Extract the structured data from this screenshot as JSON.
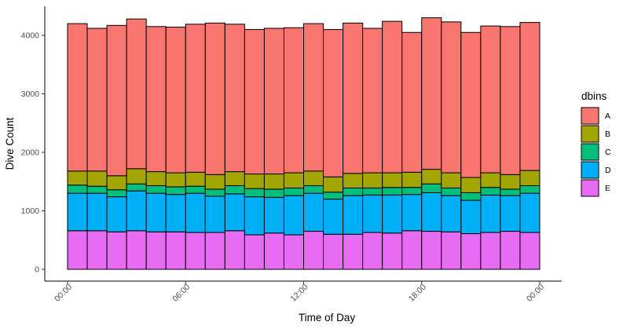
{
  "chart_data": {
    "type": "bar",
    "stacked": true,
    "xlabel": "Time of Day",
    "ylabel": "Dive Count",
    "ylim": [
      0,
      4500
    ],
    "yticks": [
      0,
      1000,
      2000,
      3000,
      4000
    ],
    "ytick_labels": [
      "0",
      "1000",
      "2000",
      "3000",
      "4000"
    ],
    "xlim": [
      0,
      24
    ],
    "xticks": [
      0,
      6,
      12,
      18,
      24
    ],
    "xtick_labels": [
      "00:00",
      "06:00",
      "12:00",
      "18:00",
      "00:00"
    ],
    "bin_width_hours": 1,
    "categories": [
      "00:00",
      "01:00",
      "02:00",
      "03:00",
      "04:00",
      "05:00",
      "06:00",
      "07:00",
      "08:00",
      "09:00",
      "10:00",
      "11:00",
      "12:00",
      "13:00",
      "14:00",
      "15:00",
      "16:00",
      "17:00",
      "18:00",
      "19:00",
      "20:00",
      "21:00",
      "22:00",
      "23:00"
    ],
    "grid": false,
    "legend": {
      "title": "dbins",
      "placement": "right"
    },
    "series": [
      {
        "name": "E",
        "color": "#E76BF3",
        "values": [
          660,
          660,
          640,
          660,
          640,
          640,
          630,
          630,
          660,
          590,
          620,
          590,
          650,
          600,
          600,
          630,
          620,
          660,
          650,
          640,
          610,
          630,
          650,
          630
        ]
      },
      {
        "name": "D",
        "color": "#00B0F6",
        "values": [
          640,
          640,
          600,
          680,
          660,
          640,
          670,
          620,
          630,
          650,
          610,
          670,
          650,
          600,
          660,
          640,
          650,
          620,
          660,
          620,
          570,
          640,
          610,
          670
        ]
      },
      {
        "name": "C",
        "color": "#00BF7D",
        "values": [
          140,
          120,
          120,
          120,
          130,
          130,
          120,
          120,
          140,
          140,
          140,
          130,
          130,
          120,
          130,
          120,
          130,
          120,
          150,
          130,
          130,
          130,
          110,
          130
        ]
      },
      {
        "name": "B",
        "color": "#A3A500",
        "values": [
          240,
          260,
          240,
          260,
          240,
          240,
          240,
          250,
          240,
          250,
          260,
          260,
          250,
          260,
          250,
          260,
          250,
          260,
          250,
          260,
          260,
          250,
          250,
          260
        ]
      },
      {
        "name": "A",
        "color": "#F8766D",
        "values": [
          2520,
          2440,
          2570,
          2560,
          2480,
          2490,
          2530,
          2590,
          2520,
          2470,
          2490,
          2480,
          2520,
          2520,
          2570,
          2470,
          2590,
          2390,
          2590,
          2580,
          2480,
          2510,
          2530,
          2530
        ]
      }
    ]
  }
}
